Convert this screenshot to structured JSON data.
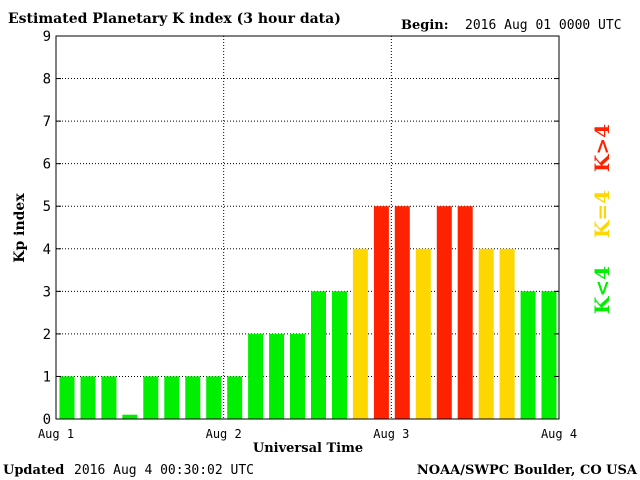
{
  "header": {
    "title": "Estimated Planetary K index (3 hour data)",
    "begin_label": "Begin:",
    "begin_value": "2016 Aug 01 0000 UTC"
  },
  "footer": {
    "updated_label": "Updated",
    "updated_value": "2016 Aug  4 00:30:02 UTC",
    "source": "NOAA/SWPC Boulder, CO USA"
  },
  "legend": [
    {
      "label": "K<4",
      "color": "#00ee00"
    },
    {
      "label": "K=4",
      "color": "#ffd700"
    },
    {
      "label": "K>4",
      "color": "#ff2200"
    }
  ],
  "chart_data": {
    "type": "bar",
    "title": "Estimated Planetary K index (3 hour data)",
    "xlabel": "Universal Time",
    "ylabel": "Kp index",
    "ylim": [
      0,
      9
    ],
    "yticks": [
      0,
      1,
      2,
      3,
      4,
      5,
      6,
      7,
      8,
      9
    ],
    "xtick_labels": [
      "Aug 1",
      "Aug 2",
      "Aug 3",
      "Aug 4"
    ],
    "grid": true,
    "bars_per_day": 8,
    "values": [
      1,
      1,
      1,
      0.1,
      1,
      1,
      1,
      1,
      1,
      2,
      2,
      2,
      3,
      3,
      4,
      5,
      5,
      4,
      5,
      5,
      4,
      4,
      3,
      3
    ],
    "colors": {
      "low": "#00ee00",
      "moderate": "#ffd700",
      "high": "#ff2200"
    }
  }
}
